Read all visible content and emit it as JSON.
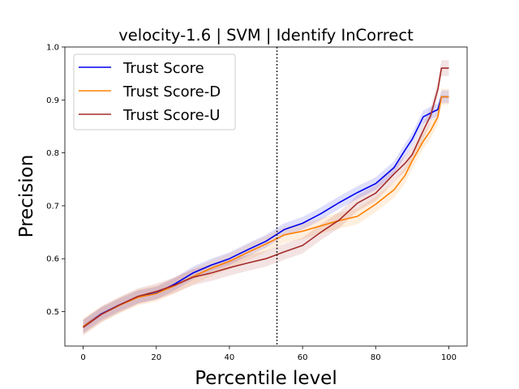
{
  "chart_data": {
    "type": "line",
    "title": "velocity-1.6 | SVM | Identify InCorrect",
    "xlabel": "Percentile level",
    "ylabel": "Precision",
    "xlim": [
      -5,
      105
    ],
    "ylim": [
      0.435,
      1.0
    ],
    "xticks": [
      0,
      20,
      40,
      60,
      80,
      100
    ],
    "yticks": [
      0.5,
      0.6,
      0.7,
      0.8,
      0.9,
      1.0
    ],
    "xtick_labels": [
      "0",
      "20",
      "40",
      "60",
      "80",
      "100"
    ],
    "ytick_labels": [
      "0.5",
      "0.6",
      "0.7",
      "0.8",
      "0.9",
      "1.0"
    ],
    "grid": false,
    "legend_position": "top-left",
    "vline": {
      "x": 53,
      "style": "dotted",
      "color": "#000000"
    },
    "series": [
      {
        "name": "Trust Score",
        "color": "#0000ee",
        "band": 0.012,
        "x": [
          0,
          5,
          10,
          15,
          20,
          25,
          30,
          35,
          40,
          45,
          50,
          55,
          60,
          65,
          70,
          75,
          80,
          85,
          88,
          90,
          93,
          95,
          97,
          98,
          100
        ],
        "y": [
          0.472,
          0.496,
          0.513,
          0.528,
          0.535,
          0.552,
          0.573,
          0.588,
          0.6,
          0.617,
          0.633,
          0.655,
          0.667,
          0.685,
          0.706,
          0.725,
          0.742,
          0.772,
          0.805,
          0.826,
          0.868,
          0.875,
          0.882,
          0.906,
          0.906
        ]
      },
      {
        "name": "Trust Score-D",
        "color": "#ff8000",
        "band": 0.015,
        "x": [
          0,
          5,
          10,
          15,
          20,
          25,
          30,
          35,
          40,
          45,
          50,
          55,
          60,
          65,
          70,
          75,
          80,
          85,
          88,
          90,
          93,
          95,
          97,
          98,
          100
        ],
        "y": [
          0.472,
          0.495,
          0.512,
          0.527,
          0.534,
          0.549,
          0.566,
          0.582,
          0.595,
          0.612,
          0.628,
          0.645,
          0.652,
          0.662,
          0.672,
          0.68,
          0.703,
          0.73,
          0.757,
          0.785,
          0.822,
          0.842,
          0.868,
          0.906,
          0.906
        ]
      },
      {
        "name": "Trust Score-U",
        "color": "#a52a2a",
        "band": 0.015,
        "x": [
          0,
          5,
          10,
          15,
          20,
          25,
          30,
          35,
          40,
          45,
          50,
          55,
          60,
          65,
          70,
          75,
          80,
          85,
          88,
          90,
          93,
          95,
          97,
          98,
          100
        ],
        "y": [
          0.47,
          0.495,
          0.513,
          0.529,
          0.538,
          0.55,
          0.565,
          0.573,
          0.583,
          0.592,
          0.6,
          0.613,
          0.625,
          0.65,
          0.673,
          0.705,
          0.724,
          0.76,
          0.78,
          0.797,
          0.842,
          0.87,
          0.92,
          0.96,
          0.96
        ]
      }
    ]
  }
}
